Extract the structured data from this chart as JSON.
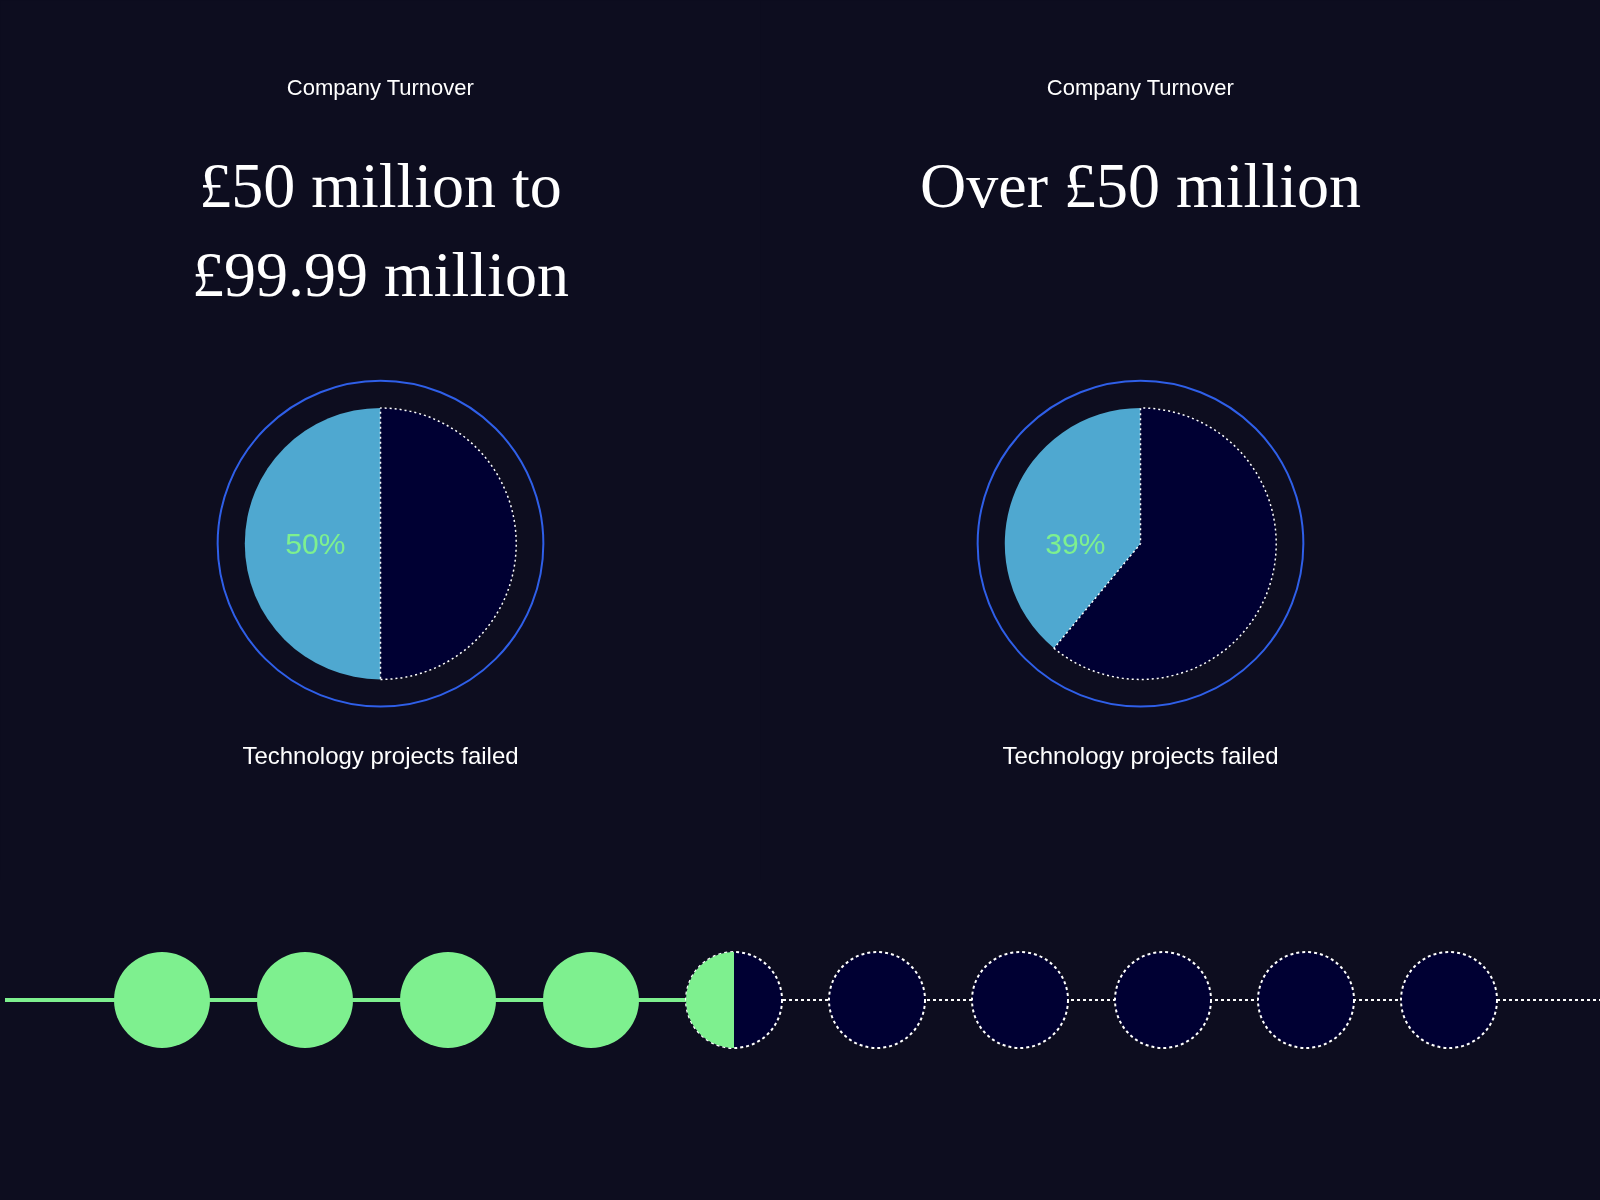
{
  "chart_data": [
    {
      "type": "pie",
      "subtitle": "Company Turnover",
      "title": "£50 million to £99.99 million",
      "categories": [
        null,
        null
      ],
      "values": [
        50,
        50
      ],
      "colors": [
        "#4fa8d0",
        "#000033"
      ],
      "value_labels": [
        "50%",
        null
      ],
      "annotations": [
        "Technology projects failed"
      ]
    },
    {
      "type": "pie",
      "subtitle": "Company Turnover",
      "title": "Over £50 million",
      "categories": [
        null,
        null
      ],
      "values": [
        39,
        61
      ],
      "colors": [
        "#4fa8d0",
        "#000033"
      ],
      "value_labels": [
        "39%",
        null
      ],
      "annotations": [
        "Technology projects failed"
      ]
    }
  ]
}
